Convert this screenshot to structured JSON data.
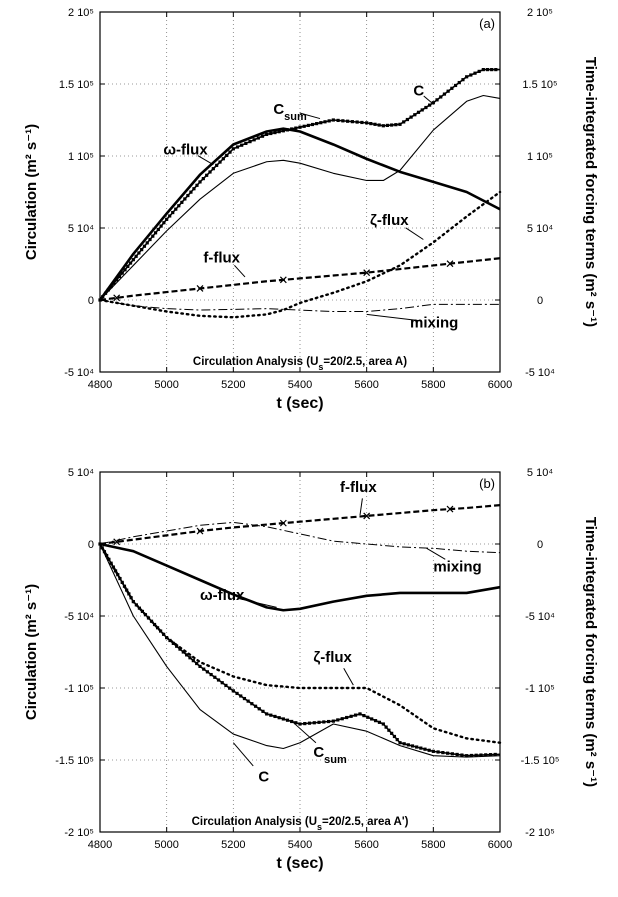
{
  "chart_data": [
    {
      "type": "line",
      "panel_label": "(a)",
      "caption": "Circulation Analysis (U",
      "caption_sub": "s",
      "caption_tail": "=20/2.5, area A)",
      "xlabel": "t (sec)",
      "ylabel_left": "Circulation (m² s⁻¹)",
      "ylabel_right": "Time-integrated forcing terms (m² s⁻¹)",
      "xlim": [
        4800,
        6000
      ],
      "ylim": [
        -50000,
        200000
      ],
      "xticks": [
        4800,
        5000,
        5200,
        5400,
        5600,
        5800,
        6000
      ],
      "xtick_labels": [
        "4800",
        "5000",
        "5200",
        "5400",
        "5600",
        "5800",
        "6000"
      ],
      "yticks": [
        -50000,
        0,
        50000,
        100000,
        150000,
        200000
      ],
      "ytick_labels": [
        "-5 10⁴",
        "0",
        "5 10⁴",
        "1 10⁵",
        "1.5 10⁵",
        "2 10⁵"
      ],
      "grid": true,
      "series": [
        {
          "key": "C",
          "style": "thin",
          "x": [
            4800,
            4900,
            5000,
            5100,
            5200,
            5300,
            5350,
            5400,
            5500,
            5600,
            5650,
            5700,
            5800,
            5900,
            5950,
            6000
          ],
          "y": [
            0,
            24000,
            48000,
            70000,
            88000,
            96000,
            97000,
            95000,
            88000,
            83000,
            83000,
            90000,
            118000,
            138000,
            142000,
            140000
          ]
        },
        {
          "key": "Csum",
          "style": "squares",
          "x": [
            4800,
            4900,
            5000,
            5100,
            5200,
            5300,
            5400,
            5500,
            5600,
            5650,
            5700,
            5800,
            5900,
            5950,
            6000
          ],
          "y": [
            0,
            28000,
            56000,
            82000,
            105000,
            115000,
            120000,
            125000,
            123000,
            121000,
            122000,
            137000,
            155000,
            160000,
            160000
          ]
        },
        {
          "key": "omega",
          "style": "thick",
          "x": [
            4800,
            4900,
            5000,
            5100,
            5200,
            5300,
            5350,
            5400,
            5500,
            5600,
            5700,
            5800,
            5900,
            6000
          ],
          "y": [
            0,
            32000,
            60000,
            87000,
            108000,
            117000,
            119000,
            117000,
            108000,
            98000,
            89000,
            82000,
            75000,
            63000
          ]
        },
        {
          "key": "f",
          "style": "dashed",
          "x": [
            4800,
            4900,
            5000,
            5100,
            5200,
            5300,
            5400,
            5500,
            5600,
            5700,
            5800,
            5900,
            6000
          ],
          "y": [
            0,
            3000,
            5500,
            8000,
            10500,
            13000,
            15000,
            17000,
            19000,
            21500,
            24000,
            26500,
            29000
          ]
        },
        {
          "key": "zeta",
          "style": "dotted",
          "x": [
            4800,
            4900,
            5000,
            5100,
            5200,
            5300,
            5350,
            5400,
            5500,
            5600,
            5700,
            5800,
            5900,
            6000
          ],
          "y": [
            0,
            -4000,
            -8000,
            -11000,
            -12000,
            -10000,
            -7000,
            -2000,
            5000,
            13000,
            24000,
            40000,
            58000,
            75000
          ]
        },
        {
          "key": "mixing",
          "style": "dashdot",
          "x": [
            4800,
            4900,
            5000,
            5100,
            5200,
            5300,
            5400,
            5500,
            5600,
            5700,
            5800,
            5900,
            6000
          ],
          "y": [
            0,
            -4000,
            -6000,
            -7000,
            -6500,
            -6000,
            -7000,
            -8000,
            -8000,
            -6000,
            -3000,
            -3000,
            -3000
          ]
        }
      ],
      "labels": [
        {
          "text": "C",
          "sub": "sum",
          "x": 5320,
          "y": 129000,
          "tx": 5460,
          "ty": 126000
        },
        {
          "text": "C",
          "sub": "",
          "x": 5740,
          "y": 142000,
          "tx": 5800,
          "ty": 136000
        },
        {
          "text": "ω-flux",
          "sub": "",
          "x": 4990,
          "y": 101000,
          "tx": 5140,
          "ty": 94000
        },
        {
          "text": "ζ-flux",
          "sub": "",
          "x": 5610,
          "y": 52000,
          "tx": 5770,
          "ty": 42000
        },
        {
          "text": "f-flux",
          "sub": "",
          "x": 5110,
          "y": 26000,
          "tx": 5235,
          "ty": 16000
        },
        {
          "text": "mixing",
          "sub": "",
          "x": 5730,
          "y": -19000,
          "tx": 5600,
          "ty": -10000
        }
      ]
    },
    {
      "type": "line",
      "panel_label": "(b)",
      "caption": "Circulation Analysis (U",
      "caption_sub": "s",
      "caption_tail": "=20/2.5, area A')",
      "xlabel": "t (sec)",
      "ylabel_left": "Circulation (m² s⁻¹)",
      "ylabel_right": "Time-integrated forcing terms (m² s⁻¹)",
      "xlim": [
        4800,
        6000
      ],
      "ylim": [
        -200000,
        50000
      ],
      "xticks": [
        4800,
        5000,
        5200,
        5400,
        5600,
        5800,
        6000
      ],
      "xtick_labels": [
        "4800",
        "5000",
        "5200",
        "5400",
        "5600",
        "5800",
        "6000"
      ],
      "yticks": [
        -200000,
        -150000,
        -100000,
        -50000,
        0,
        50000
      ],
      "ytick_labels": [
        "-2 10⁵",
        "-1.5 10⁵",
        "-1 10⁵",
        "-5 10⁴",
        "0",
        "5 10⁴"
      ],
      "grid": true,
      "series": [
        {
          "key": "C",
          "style": "thin",
          "x": [
            4800,
            4900,
            5000,
            5100,
            5200,
            5300,
            5350,
            5400,
            5500,
            5600,
            5700,
            5800,
            5900,
            6000
          ],
          "y": [
            0,
            -50000,
            -85000,
            -115000,
            -132000,
            -140000,
            -142000,
            -138000,
            -125000,
            -130000,
            -140000,
            -147000,
            -148000,
            -147000
          ]
        },
        {
          "key": "Csum",
          "style": "squares",
          "x": [
            4800,
            4900,
            5000,
            5100,
            5200,
            5300,
            5400,
            5500,
            5580,
            5650,
            5700,
            5800,
            5900,
            6000
          ],
          "y": [
            0,
            -40000,
            -65000,
            -85000,
            -102000,
            -118000,
            -125000,
            -123000,
            -118000,
            -125000,
            -138000,
            -144000,
            -147000,
            -146000
          ]
        },
        {
          "key": "omega",
          "style": "thick",
          "x": [
            4800,
            4900,
            5000,
            5100,
            5200,
            5300,
            5350,
            5400,
            5500,
            5600,
            5700,
            5800,
            5900,
            6000
          ],
          "y": [
            0,
            -5000,
            -15000,
            -25000,
            -35000,
            -44000,
            -46000,
            -45000,
            -40000,
            -36000,
            -34000,
            -34000,
            -34000,
            -30000
          ]
        },
        {
          "key": "f",
          "style": "dashed",
          "x": [
            4800,
            4900,
            5000,
            5100,
            5200,
            5300,
            5400,
            5500,
            5600,
            5700,
            5800,
            5900,
            6000
          ],
          "y": [
            0,
            3000,
            6000,
            9000,
            11500,
            13500,
            15500,
            17500,
            19500,
            21500,
            23500,
            25000,
            27000
          ]
        },
        {
          "key": "zeta",
          "style": "dotted",
          "x": [
            4800,
            4900,
            5000,
            5100,
            5200,
            5300,
            5400,
            5500,
            5600,
            5700,
            5800,
            5900,
            6000
          ],
          "y": [
            0,
            -40000,
            -65000,
            -82000,
            -92000,
            -98000,
            -100000,
            -100000,
            -100000,
            -112000,
            -128000,
            -135000,
            -138000
          ]
        },
        {
          "key": "mixing",
          "style": "dashdot",
          "x": [
            4800,
            4900,
            5000,
            5100,
            5200,
            5300,
            5400,
            5500,
            5600,
            5700,
            5800,
            5900,
            6000
          ],
          "y": [
            0,
            5000,
            9000,
            13000,
            15000,
            12000,
            7000,
            2000,
            0,
            -2000,
            -3000,
            -5000,
            -6000
          ]
        }
      ],
      "labels": [
        {
          "text": "f-flux",
          "sub": "",
          "x": 5520,
          "y": 36000,
          "tx": 5580,
          "ty": 20000
        },
        {
          "text": "mixing",
          "sub": "",
          "x": 5800,
          "y": -19000,
          "tx": 5780,
          "ty": -3000
        },
        {
          "text": "ω-flux",
          "sub": "",
          "x": 5100,
          "y": -39000,
          "tx": 5330,
          "ty": -44000
        },
        {
          "text": "ζ-flux",
          "sub": "",
          "x": 5440,
          "y": -82000,
          "tx": 5560,
          "ty": -98000
        },
        {
          "text": "C",
          "sub": "sum",
          "x": 5440,
          "y": -148000,
          "tx": 5380,
          "ty": -124000
        },
        {
          "text": "C",
          "sub": "",
          "x": 5275,
          "y": -165000,
          "tx": 5200,
          "ty": -138000
        }
      ]
    }
  ]
}
